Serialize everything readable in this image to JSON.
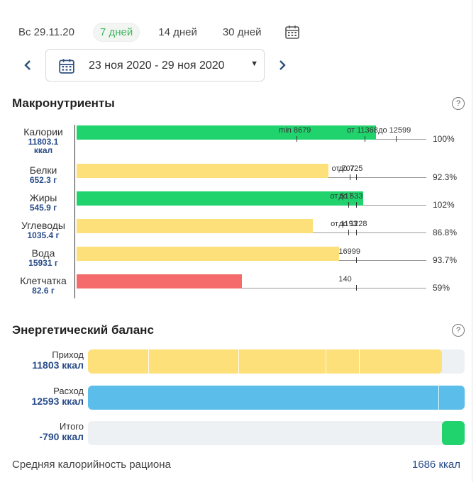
{
  "period_tabs": [
    {
      "label": "Вс 29.11.20",
      "active": false
    },
    {
      "label": "7 дней",
      "active": true
    },
    {
      "label": "14 дней",
      "active": false
    },
    {
      "label": "30 дней",
      "active": false
    }
  ],
  "date_range": "23 ноя 2020 - 29 ноя 2020",
  "macros": {
    "title": "Макронутриенты",
    "help": "?",
    "scale_max": 13800,
    "rows": [
      {
        "name": "Калории",
        "value": "11803.1",
        "unit": "ккал",
        "amount": 11803.1,
        "color": "#21d36d",
        "percent": "100%",
        "markers": [
          {
            "label": "min 8679",
            "at": 8679
          },
          {
            "label": "от 11368",
            "at": 11368
          },
          {
            "label": "до 12599",
            "at": 12599
          }
        ]
      },
      {
        "name": "Белки",
        "value": "652.3 г",
        "amount": 652.3,
        "color": "#fde07a",
        "percent": "92.3%",
        "scale": 725,
        "markers": [
          {
            "label": "от 707",
            "at": 707
          },
          {
            "label": "до 725",
            "at": 725
          }
        ]
      },
      {
        "name": "Жиры",
        "value": "545.9 г",
        "amount": 545.9,
        "color": "#21d36d",
        "percent": "102%",
        "scale": 533,
        "markers": [
          {
            "label": "от 517",
            "at": 517
          },
          {
            "label": "до 533",
            "at": 533
          }
        ]
      },
      {
        "name": "Углеводы",
        "value": "1035.4 г",
        "amount": 1035.4,
        "color": "#fde07a",
        "percent": "86.8%",
        "scale": 1228,
        "markers": [
          {
            "label": "от 1193",
            "at": 1193
          },
          {
            "label": "до 1228",
            "at": 1228
          }
        ]
      },
      {
        "name": "Вода",
        "value": "15931 г",
        "amount": 15931,
        "color": "#fde07a",
        "percent": "93.7%",
        "scale": 16999,
        "markers": [
          {
            "label": "16999",
            "at": 16999
          }
        ]
      },
      {
        "name": "Клетчатка",
        "value": "82.6 г",
        "amount": 82.6,
        "color": "#f56b6b",
        "percent": "59%",
        "scale": 140,
        "markers": [
          {
            "label": "140",
            "at": 140
          }
        ]
      }
    ]
  },
  "energy": {
    "title": "Энергетический баланс",
    "help": "?",
    "rows": [
      {
        "name": "Приход",
        "value": "11803 ккал",
        "fill": 0.94,
        "color": "#fde07a"
      },
      {
        "name": "Расход",
        "value": "12593 ккал",
        "fill": 1.0,
        "color": "#5bbde9"
      },
      {
        "name": "Итого",
        "value": "-790 ккал",
        "fill": 0.06,
        "color": "#21d36d"
      }
    ]
  },
  "footer": {
    "label": "Средняя калорийность рациона",
    "value": "1686 ккал"
  }
}
